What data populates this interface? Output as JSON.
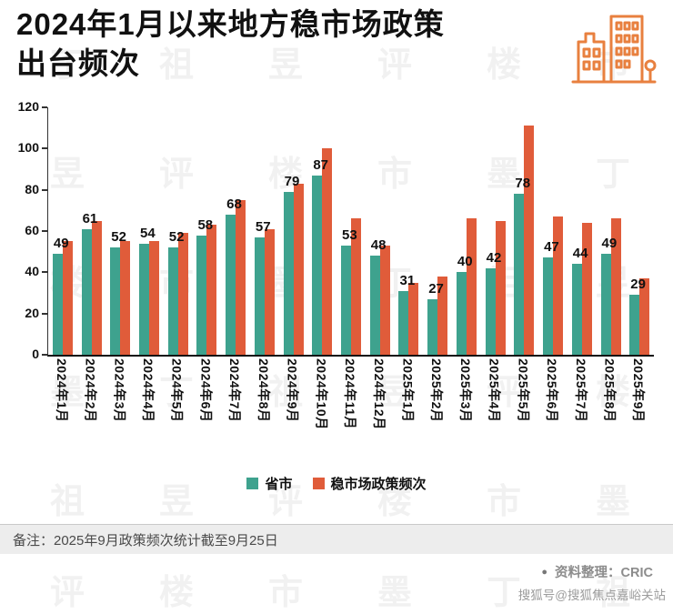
{
  "header": {
    "title_line1": "2024年1月以来地方稳市场政策",
    "title_line2": "出台频次",
    "icon": "buildings-icon",
    "icon_color": "#e8803f"
  },
  "chart_data": {
    "type": "bar",
    "title": "2024年1月以来地方稳市场政策出台频次",
    "categories": [
      "2024年1月",
      "2024年2月",
      "2024年3月",
      "2024年4月",
      "2024年5月",
      "2024年6月",
      "2024年7月",
      "2024年8月",
      "2024年9月",
      "2024年10月",
      "2024年11月",
      "2024年12月",
      "2025年1月",
      "2025年2月",
      "2025年3月",
      "2025年4月",
      "2025年5月",
      "2025年6月",
      "2025年7月",
      "2025年8月",
      "2025年9月"
    ],
    "series": [
      {
        "name": "省市",
        "color": "#3ea28e",
        "values": [
          49,
          61,
          52,
          54,
          52,
          58,
          68,
          57,
          79,
          87,
          53,
          48,
          31,
          27,
          40,
          42,
          78,
          47,
          44,
          49,
          29
        ],
        "data_labels": true
      },
      {
        "name": "稳市场政策频次",
        "color": "#e05c3a",
        "values": [
          55,
          65,
          55,
          55,
          59,
          63,
          75,
          61,
          83,
          100,
          66,
          53,
          35,
          38,
          66,
          65,
          111,
          67,
          64,
          66,
          37
        ],
        "data_labels": false
      }
    ],
    "xlabel": "",
    "ylabel": "",
    "ylim": [
      0,
      120
    ],
    "yticks": [
      0,
      20,
      40,
      60,
      80,
      100,
      120
    ],
    "grid": false,
    "legend_position": "bottom"
  },
  "legend": {
    "items": [
      {
        "label": "省市",
        "color": "#3ea28e"
      },
      {
        "label": "稳市场政策频次",
        "color": "#e05c3a"
      }
    ]
  },
  "footer": {
    "note": "备注：2025年9月政策频次统计截至9月25日",
    "source_bullet": "●",
    "source": "资料整理：CRIC",
    "watermark_badge": "搜狐号@搜狐焦点嘉峪关站"
  },
  "watermark": {
    "text": "丁祖昱评楼市墨"
  }
}
